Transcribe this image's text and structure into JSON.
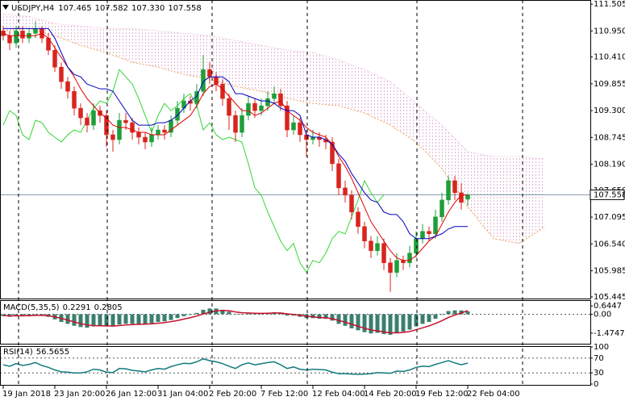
{
  "chart_data": [
    {
      "type": "candlestick",
      "symbol": "USDJPY,H4",
      "header_values": [
        "107.465",
        "107.582",
        "107.330",
        "107.558"
      ],
      "colors": {
        "up": "#1e9e3a",
        "down": "#d8251e"
      },
      "candles": [
        [
          110.95,
          111.05,
          110.75,
          110.85
        ],
        [
          110.85,
          110.95,
          110.55,
          110.7
        ],
        [
          110.7,
          111.05,
          110.6,
          110.95
        ],
        [
          110.95,
          111.05,
          110.7,
          110.8
        ],
        [
          110.8,
          111.0,
          110.7,
          110.9
        ],
        [
          110.9,
          111.15,
          110.8,
          111.0
        ],
        [
          111.0,
          111.05,
          110.7,
          110.8
        ],
        [
          110.8,
          110.9,
          110.45,
          110.55
        ],
        [
          110.55,
          110.65,
          110.1,
          110.2
        ],
        [
          110.2,
          110.3,
          109.75,
          109.9
        ],
        [
          109.9,
          110.0,
          109.55,
          109.7
        ],
        [
          109.7,
          109.8,
          109.2,
          109.35
        ],
        [
          109.35,
          109.45,
          109.0,
          109.15
        ],
        [
          109.15,
          109.25,
          108.85,
          109.0
        ],
        [
          109.0,
          109.45,
          108.9,
          109.3
        ],
        [
          109.3,
          109.4,
          109.05,
          109.2
        ],
        [
          109.2,
          109.3,
          108.55,
          108.8
        ],
        [
          108.8,
          108.9,
          108.45,
          108.7
        ],
        [
          108.7,
          109.25,
          108.6,
          109.1
        ],
        [
          109.1,
          109.25,
          108.9,
          109.05
        ],
        [
          109.05,
          109.15,
          108.7,
          108.85
        ],
        [
          108.85,
          108.95,
          108.6,
          108.75
        ],
        [
          108.75,
          108.85,
          108.5,
          108.65
        ],
        [
          108.65,
          108.95,
          108.55,
          108.8
        ],
        [
          108.8,
          109.0,
          108.7,
          108.9
        ],
        [
          108.9,
          109.0,
          108.7,
          108.85
        ],
        [
          108.85,
          109.2,
          108.75,
          109.1
        ],
        [
          109.1,
          109.5,
          109.0,
          109.35
        ],
        [
          109.35,
          109.65,
          109.25,
          109.5
        ],
        [
          109.5,
          109.6,
          109.3,
          109.45
        ],
        [
          109.45,
          109.85,
          109.35,
          109.7
        ],
        [
          109.7,
          110.45,
          109.6,
          110.15
        ],
        [
          110.15,
          110.3,
          109.85,
          110.0
        ],
        [
          110.0,
          110.1,
          109.7,
          109.85
        ],
        [
          109.85,
          109.95,
          109.4,
          109.55
        ],
        [
          109.55,
          109.65,
          108.9,
          109.2
        ],
        [
          109.2,
          109.3,
          108.65,
          108.85
        ],
        [
          108.85,
          109.35,
          108.75,
          109.2
        ],
        [
          109.2,
          109.6,
          109.1,
          109.45
        ],
        [
          109.45,
          109.55,
          109.15,
          109.3
        ],
        [
          109.3,
          109.55,
          109.2,
          109.4
        ],
        [
          109.4,
          109.7,
          109.3,
          109.55
        ],
        [
          109.55,
          109.8,
          109.45,
          109.65
        ],
        [
          109.65,
          109.75,
          109.3,
          109.4
        ],
        [
          109.4,
          109.5,
          108.75,
          108.9
        ],
        [
          108.9,
          109.2,
          108.8,
          109.05
        ],
        [
          109.05,
          109.15,
          108.65,
          108.8
        ],
        [
          108.8,
          108.9,
          108.35,
          108.7
        ],
        [
          108.7,
          108.9,
          108.6,
          108.75
        ],
        [
          108.75,
          108.85,
          108.55,
          108.7
        ],
        [
          108.7,
          108.8,
          108.5,
          108.65
        ],
        [
          108.65,
          108.75,
          108.05,
          108.2
        ],
        [
          108.2,
          108.3,
          107.55,
          107.7
        ],
        [
          107.7,
          107.85,
          107.4,
          107.55
        ],
        [
          107.55,
          107.65,
          107.05,
          107.2
        ],
        [
          107.2,
          107.3,
          106.75,
          106.9
        ],
        [
          106.9,
          107.0,
          106.45,
          106.6
        ],
        [
          106.6,
          106.7,
          106.25,
          106.4
        ],
        [
          106.4,
          106.7,
          106.3,
          106.55
        ],
        [
          106.55,
          106.65,
          106.0,
          106.15
        ],
        [
          106.15,
          106.25,
          105.55,
          105.95
        ],
        [
          105.95,
          106.35,
          105.85,
          106.2
        ],
        [
          106.2,
          106.3,
          106.0,
          106.15
        ],
        [
          106.15,
          106.5,
          106.05,
          106.35
        ],
        [
          106.35,
          106.8,
          106.25,
          106.65
        ],
        [
          106.65,
          106.95,
          106.55,
          106.8
        ],
        [
          106.8,
          106.9,
          106.6,
          106.75
        ],
        [
          106.75,
          107.25,
          106.65,
          107.1
        ],
        [
          107.1,
          107.6,
          107.0,
          107.45
        ],
        [
          107.45,
          107.95,
          107.35,
          107.85
        ],
        [
          107.85,
          107.95,
          107.45,
          107.6
        ],
        [
          107.6,
          107.8,
          107.25,
          107.4
        ],
        [
          107.465,
          107.582,
          107.33,
          107.558
        ]
      ],
      "tenkan": {
        "color": "#e00000",
        "values": [
          110.9,
          110.85,
          110.85,
          110.85,
          110.85,
          110.85,
          110.9,
          110.8,
          110.6,
          110.4,
          110.2,
          110.0,
          109.75,
          109.55,
          109.4,
          109.25,
          109.15,
          109.0,
          108.95,
          108.95,
          108.9,
          108.85,
          108.85,
          108.8,
          108.8,
          108.8,
          108.9,
          109.0,
          109.1,
          109.2,
          109.4,
          109.65,
          109.8,
          109.85,
          109.75,
          109.6,
          109.45,
          109.3,
          109.3,
          109.2,
          109.25,
          109.35,
          109.45,
          109.5,
          109.3,
          109.2,
          109.1,
          108.95,
          108.85,
          108.8,
          108.75,
          108.6,
          108.35,
          108.15,
          107.9,
          107.6,
          107.3,
          107.0,
          106.8,
          106.6,
          106.4,
          106.25,
          106.2,
          106.2,
          106.3,
          106.45,
          106.6,
          106.7,
          106.95,
          107.2,
          107.4,
          107.55,
          107.55
        ]
      },
      "kijun": {
        "color": "#0000c0",
        "values": [
          111.0,
          111.0,
          111.0,
          111.0,
          111.0,
          111.0,
          111.0,
          111.0,
          110.8,
          110.5,
          110.2,
          110.05,
          110.0,
          109.85,
          109.8,
          109.75,
          109.75,
          109.7,
          109.5,
          109.3,
          109.1,
          109.0,
          109.0,
          109.0,
          109.05,
          109.05,
          109.1,
          109.2,
          109.35,
          109.5,
          109.6,
          109.9,
          110.0,
          110.0,
          110.0,
          109.9,
          109.65,
          109.65,
          109.6,
          109.55,
          109.5,
          109.5,
          109.45,
          109.35,
          109.3,
          109.3,
          109.2,
          108.8,
          108.75,
          108.75,
          108.7,
          108.6,
          108.4,
          108.25,
          108.0,
          107.8,
          107.6,
          107.45,
          107.4,
          107.2,
          107.15,
          107.15,
          107.0,
          106.75,
          106.65,
          106.65,
          106.65,
          106.7,
          106.75,
          106.85,
          106.9,
          106.9,
          106.9
        ]
      },
      "chikou": {
        "color": "#33d633"
      },
      "cloud": {
        "upper_color": "#e6a9cf",
        "lower_color": "#f0a060",
        "x": [
          0,
          4,
          8,
          12,
          16,
          20,
          24,
          28,
          32,
          36,
          40,
          44,
          48,
          52,
          56,
          60,
          64,
          68,
          72,
          76,
          80,
          84
        ],
        "upper": [
          111.3,
          111.25,
          111.1,
          111.05,
          111.0,
          111.0,
          110.95,
          110.9,
          110.85,
          110.75,
          110.65,
          110.55,
          110.5,
          110.35,
          110.15,
          109.9,
          109.45,
          109.0,
          108.45,
          108.35,
          108.35,
          108.3
        ],
        "lower": [
          110.95,
          111.0,
          110.85,
          110.65,
          110.5,
          110.3,
          110.2,
          110.05,
          109.95,
          109.8,
          109.7,
          109.55,
          109.45,
          109.4,
          109.25,
          109.0,
          108.65,
          108.1,
          107.3,
          106.65,
          106.55,
          106.9
        ]
      },
      "ylim": [
        105.41,
        111.59
      ],
      "yticks": [
        111.505,
        {
          "value": 110.95,
          "label": "110.950"
        },
        {
          "value": 110.41,
          "label": "110.410"
        },
        109.855,
        {
          "value": 109.3,
          "label": "109.300"
        },
        108.745,
        {
          "value": 108.19,
          "label": "108.190"
        },
        {
          "value": 107.65,
          "label": "107.650"
        },
        107.095,
        {
          "value": 106.54,
          "label": "106.540"
        },
        105.985,
        105.445
      ],
      "xlim": [
        -0.5,
        91
      ],
      "xticks": [
        {
          "value": 0,
          "label": "19 Jan 2018"
        },
        {
          "value": 8,
          "label": "23 Jan 20:00"
        },
        {
          "value": 16,
          "label": "26 Jan 12:00"
        },
        {
          "value": 24,
          "label": "31 Jan 04:00"
        },
        {
          "value": 32,
          "label": "2 Feb 20:00"
        },
        {
          "value": 40,
          "label": "7 Feb 12:00"
        },
        {
          "value": 48,
          "label": "12 Feb 04:00"
        },
        {
          "value": 56,
          "label": "14 Feb 20:00"
        },
        {
          "value": 64,
          "label": "19 Feb 12:00"
        },
        {
          "value": 72,
          "label": "22 Feb 04:00"
        }
      ],
      "price_line_color": "#8094aa"
    },
    {
      "type": "macd",
      "title": "MACD(5,35,5)",
      "histogram": {
        "color": "#3a7f6c",
        "values": [
          -0.15,
          -0.2,
          -0.15,
          -0.1,
          -0.1,
          -0.05,
          -0.1,
          -0.2,
          -0.4,
          -0.6,
          -0.75,
          -0.9,
          -1.0,
          -1.05,
          -0.95,
          -0.9,
          -0.95,
          -0.95,
          -0.8,
          -0.75,
          -0.75,
          -0.75,
          -0.75,
          -0.7,
          -0.6,
          -0.55,
          -0.45,
          -0.3,
          -0.15,
          -0.05,
          0.1,
          0.35,
          0.45,
          0.45,
          0.35,
          0.2,
          0.0,
          0.0,
          0.05,
          0.05,
          0.05,
          0.1,
          0.15,
          0.1,
          -0.1,
          -0.1,
          -0.2,
          -0.3,
          -0.3,
          -0.35,
          -0.35,
          -0.5,
          -0.75,
          -0.9,
          -1.1,
          -1.25,
          -1.4,
          -1.5,
          -1.45,
          -1.55,
          -1.6,
          -1.45,
          -1.35,
          -1.2,
          -0.95,
          -0.75,
          -0.6,
          -0.35,
          -0.05,
          0.25,
          0.3,
          0.3,
          0.2291
        ]
      },
      "signal": {
        "color": "#c8102e",
        "values": [
          -0.1,
          -0.12,
          -0.13,
          -0.12,
          -0.11,
          -0.09,
          -0.09,
          -0.12,
          -0.2,
          -0.32,
          -0.46,
          -0.6,
          -0.73,
          -0.84,
          -0.89,
          -0.9,
          -0.91,
          -0.92,
          -0.88,
          -0.84,
          -0.81,
          -0.79,
          -0.77,
          -0.75,
          -0.7,
          -0.65,
          -0.58,
          -0.49,
          -0.38,
          -0.27,
          -0.14,
          0.02,
          0.16,
          0.26,
          0.3,
          0.27,
          0.18,
          0.12,
          0.1,
          0.08,
          0.07,
          0.08,
          0.1,
          0.1,
          0.03,
          -0.02,
          -0.08,
          -0.15,
          -0.2,
          -0.25,
          -0.28,
          -0.35,
          -0.48,
          -0.62,
          -0.78,
          -0.94,
          -1.09,
          -1.23,
          -1.3,
          -1.38,
          -1.45,
          -1.45,
          -1.42,
          -1.35,
          -1.21,
          -1.06,
          -0.91,
          -0.72,
          -0.5,
          -0.25,
          -0.07,
          0.1,
          0.2805
        ]
      },
      "ylim": [
        -2.3,
        1.1
      ],
      "yticks": [
        0.6447,
        {
          "value": 0,
          "label": "0.00"
        },
        -1.4747
      ]
    },
    {
      "type": "line",
      "title": "RSI(14)",
      "series": [
        {
          "color": "#137a7f",
          "values": [
            52,
            48,
            55,
            50,
            53,
            58,
            50,
            45,
            38,
            33,
            32,
            30,
            30,
            33,
            40,
            38,
            32,
            31,
            42,
            41,
            37,
            35,
            33,
            38,
            42,
            40,
            47,
            52,
            56,
            55,
            60,
            68,
            63,
            60,
            55,
            48,
            42,
            52,
            57,
            52,
            55,
            58,
            60,
            52,
            42,
            46,
            40,
            38,
            40,
            39,
            38,
            32,
            28,
            28,
            27,
            26,
            27,
            28,
            31,
            30,
            29,
            35,
            34,
            38,
            45,
            48,
            47,
            53,
            58,
            63,
            57,
            52,
            56.5655
          ]
        }
      ],
      "ylim": [
        0,
        100
      ],
      "yticks": [
        100,
        70,
        30,
        0
      ]
    }
  ]
}
